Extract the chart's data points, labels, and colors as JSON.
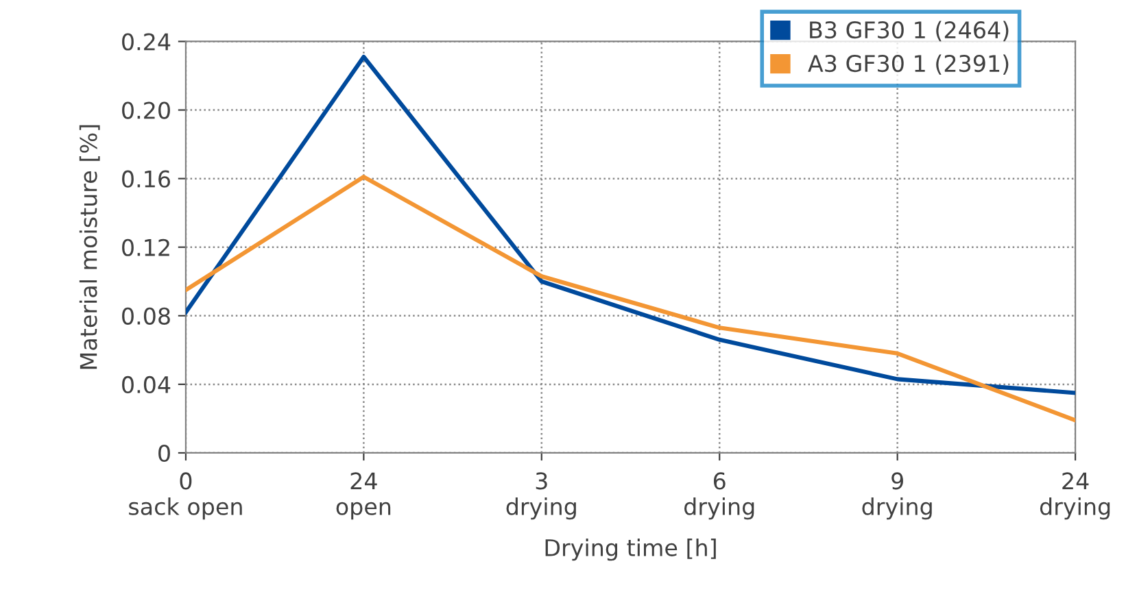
{
  "chart_data": {
    "type": "line",
    "xlabel": "Drying time [h]",
    "ylabel": "Material moisture [%]",
    "categories": [
      "0\nsack open",
      "24\nopen",
      "3\ndrying",
      "6\ndrying",
      "9\ndrying",
      "24\ndrying"
    ],
    "series": [
      {
        "name": "B3 GF30 1 (2464)",
        "color": "#004a9c",
        "values": [
          0.082,
          0.231,
          0.1,
          0.066,
          0.043,
          0.035
        ]
      },
      {
        "name": "A3 GF30 1 (2391)",
        "color": "#f39634",
        "values": [
          0.095,
          0.161,
          0.103,
          0.073,
          0.058,
          0.019
        ]
      }
    ],
    "ylim": [
      0,
      0.24
    ],
    "yticks": [
      0,
      0.04,
      0.08,
      0.12,
      0.16,
      {
        "value": 0.2,
        "label": "0.20"
      },
      0.24
    ],
    "grid": true,
    "legend": "top right",
    "marker": "none",
    "line_style": "solid"
  }
}
